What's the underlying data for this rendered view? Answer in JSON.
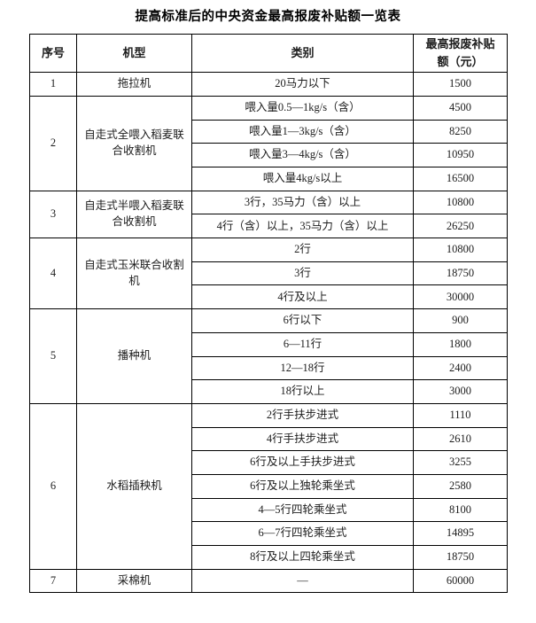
{
  "title": "提高标准后的中央资金最高报废补贴额一览表",
  "table": {
    "headers": [
      "序号",
      "机型",
      "类别",
      "最高报废补贴额（元）"
    ],
    "sections": [
      {
        "no": "1",
        "machine": "拖拉机",
        "rows": [
          {
            "category": "20马力以下",
            "amount": "1500"
          }
        ]
      },
      {
        "no": "2",
        "machine": "自走式全喂入稻麦联合收割机",
        "rows": [
          {
            "category": "喂入量0.5—1kg/s（含）",
            "amount": "4500"
          },
          {
            "category": "喂入量1—3kg/s（含）",
            "amount": "8250"
          },
          {
            "category": "喂入量3—4kg/s（含）",
            "amount": "10950"
          },
          {
            "category": "喂入量4kg/s以上",
            "amount": "16500"
          }
        ]
      },
      {
        "no": "3",
        "machine": "自走式半喂入稻麦联合收割机",
        "rows": [
          {
            "category": "3行，35马力（含）以上",
            "amount": "10800"
          },
          {
            "category": "4行（含）以上，35马力（含）以上",
            "amount": "26250"
          }
        ]
      },
      {
        "no": "4",
        "machine": "自走式玉米联合收割机",
        "rows": [
          {
            "category": "2行",
            "amount": "10800"
          },
          {
            "category": "3行",
            "amount": "18750"
          },
          {
            "category": "4行及以上",
            "amount": "30000"
          }
        ]
      },
      {
        "no": "5",
        "machine": "播种机",
        "rows": [
          {
            "category": "6行以下",
            "amount": "900"
          },
          {
            "category": "6—11行",
            "amount": "1800"
          },
          {
            "category": "12—18行",
            "amount": "2400"
          },
          {
            "category": "18行以上",
            "amount": "3000"
          }
        ]
      },
      {
        "no": "6",
        "machine": "水稻插秧机",
        "rows": [
          {
            "category": "2行手扶步进式",
            "amount": "1110"
          },
          {
            "category": "4行手扶步进式",
            "amount": "2610"
          },
          {
            "category": "6行及以上手扶步进式",
            "amount": "3255"
          },
          {
            "category": "6行及以上独轮乘坐式",
            "amount": "2580"
          },
          {
            "category": "4—5行四轮乘坐式",
            "amount": "8100"
          },
          {
            "category": "6—7行四轮乘坐式",
            "amount": "14895"
          },
          {
            "category": "8行及以上四轮乘坐式",
            "amount": "18750"
          }
        ]
      },
      {
        "no": "7",
        "machine": "采棉机",
        "rows": [
          {
            "category": "—",
            "amount": "60000"
          }
        ]
      }
    ]
  },
  "colors": {
    "text": "#1c1c1c",
    "border": "#000000",
    "background": "#ffffff"
  }
}
